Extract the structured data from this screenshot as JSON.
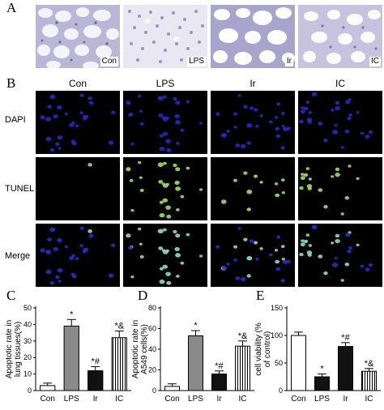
{
  "panel_letters": {
    "a": "A",
    "b": "B",
    "c": "C",
    "d": "D",
    "e": "E"
  },
  "groups": [
    "Con",
    "LPS",
    "Ir",
    "IC"
  ],
  "row_labels": [
    "DAPI",
    "TUNEL",
    "Merge"
  ],
  "chart_data": [
    {
      "type": "bar",
      "panel": "C",
      "categories": [
        "Con",
        "LPS",
        "Ir",
        "IC"
      ],
      "values": [
        3,
        39,
        12,
        32
      ],
      "errors": [
        1.5,
        4,
        2.5,
        4
      ],
      "significance": [
        "",
        "*",
        "*#",
        "*&"
      ],
      "fills": [
        "#ffffff",
        "#8a8a8a",
        "#111111",
        "hatch"
      ],
      "ylabel": "Apoptotic rate in lung tissues(%)",
      "ylim": [
        0,
        50
      ],
      "yticks": [
        0,
        10,
        20,
        30,
        40,
        50
      ]
    },
    {
      "type": "bar",
      "panel": "D",
      "categories": [
        "Con",
        "LPS",
        "Ir",
        "IC"
      ],
      "values": [
        4,
        53,
        16,
        43
      ],
      "errors": [
        2.5,
        5,
        3,
        5
      ],
      "significance": [
        "",
        "*",
        "*#",
        "*&"
      ],
      "fills": [
        "#ffffff",
        "#8a8a8a",
        "#111111",
        "hatch"
      ],
      "ylabel": "Apoptotic rate in A549 cells(%)",
      "ylim": [
        0,
        80
      ],
      "yticks": [
        0,
        20,
        40,
        60,
        80
      ]
    },
    {
      "type": "bar",
      "panel": "E",
      "categories": [
        "Con",
        "LPS",
        "Ir",
        "IC"
      ],
      "values": [
        100,
        25,
        80,
        35
      ],
      "errors": [
        6,
        5,
        7,
        5
      ],
      "significance": [
        "",
        "*",
        "*#",
        "*&"
      ],
      "fills": [
        "#ffffff",
        "#111111",
        "#111111",
        "hatch"
      ],
      "ylabel": "cell viability (% of control)",
      "ylim": [
        0,
        150
      ],
      "yticks": [
        0,
        50,
        100,
        150
      ]
    }
  ]
}
